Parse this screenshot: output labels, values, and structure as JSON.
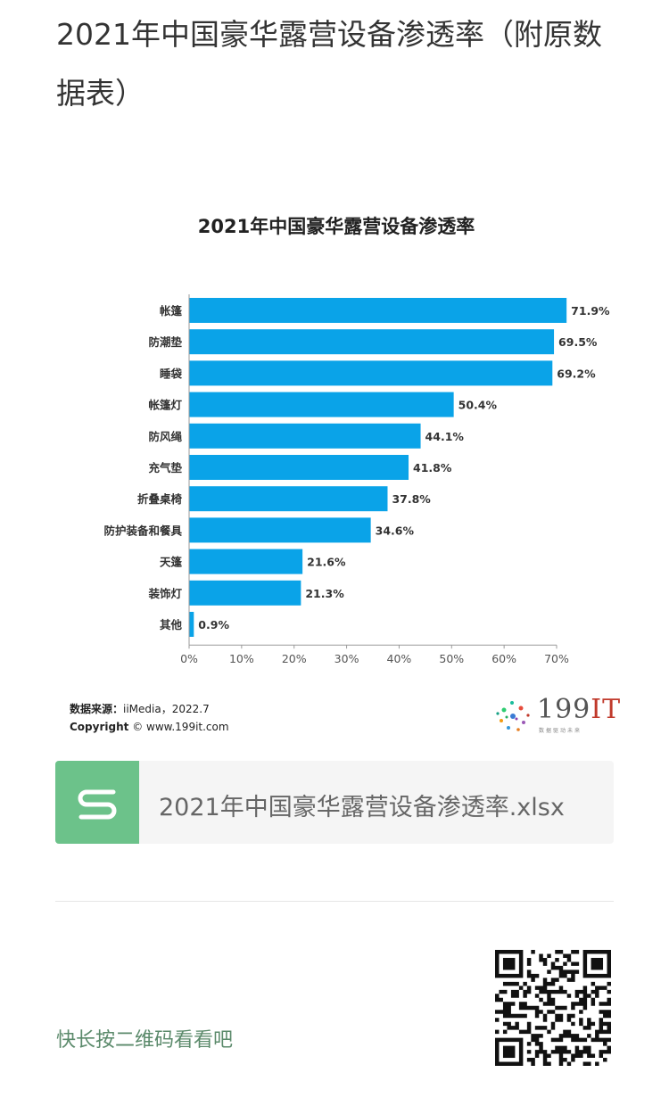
{
  "article": {
    "title": "2021年中国豪华露营设备渗透率（附原数据表）"
  },
  "chart_data": {
    "type": "bar",
    "orientation": "horizontal",
    "title": "2021年中国豪华露营设备渗透率",
    "categories": [
      "帐篷",
      "防潮垫",
      "睡袋",
      "帐篷灯",
      "防风绳",
      "充气垫",
      "折叠桌椅",
      "防护装备和餐具",
      "天篷",
      "装饰灯",
      "其他"
    ],
    "values": [
      71.9,
      69.5,
      69.2,
      50.4,
      44.1,
      41.8,
      37.8,
      34.6,
      21.6,
      21.3,
      0.9
    ],
    "value_labels": [
      "71.9%",
      "69.5%",
      "69.2%",
      "50.4%",
      "44.1%",
      "41.8%",
      "37.8%",
      "34.6%",
      "21.6%",
      "21.3%",
      "0.9%"
    ],
    "xlim": [
      0,
      70
    ],
    "x_ticks": [
      "0%",
      "10%",
      "20%",
      "30%",
      "40%",
      "50%",
      "60%",
      "70%"
    ],
    "grid": false,
    "bar_color": "#0aa3e8"
  },
  "source": {
    "label": "数据来源：",
    "text": "iiMedia，2022.7",
    "copyright_label": "Copyright",
    "copyright_text": "© www.199it.com"
  },
  "brand": {
    "name_num": "199",
    "name_it": "IT",
    "tagline": "数据驱动未来"
  },
  "file_card": {
    "filename": "2021年中国豪华露营设备渗透率.xlsx",
    "icon": "spreadsheet-s-icon",
    "icon_color": "#6cc28a"
  },
  "footer": {
    "qr_hint": "快长按二维码看看吧",
    "qr_icon": "qr-code-icon"
  }
}
